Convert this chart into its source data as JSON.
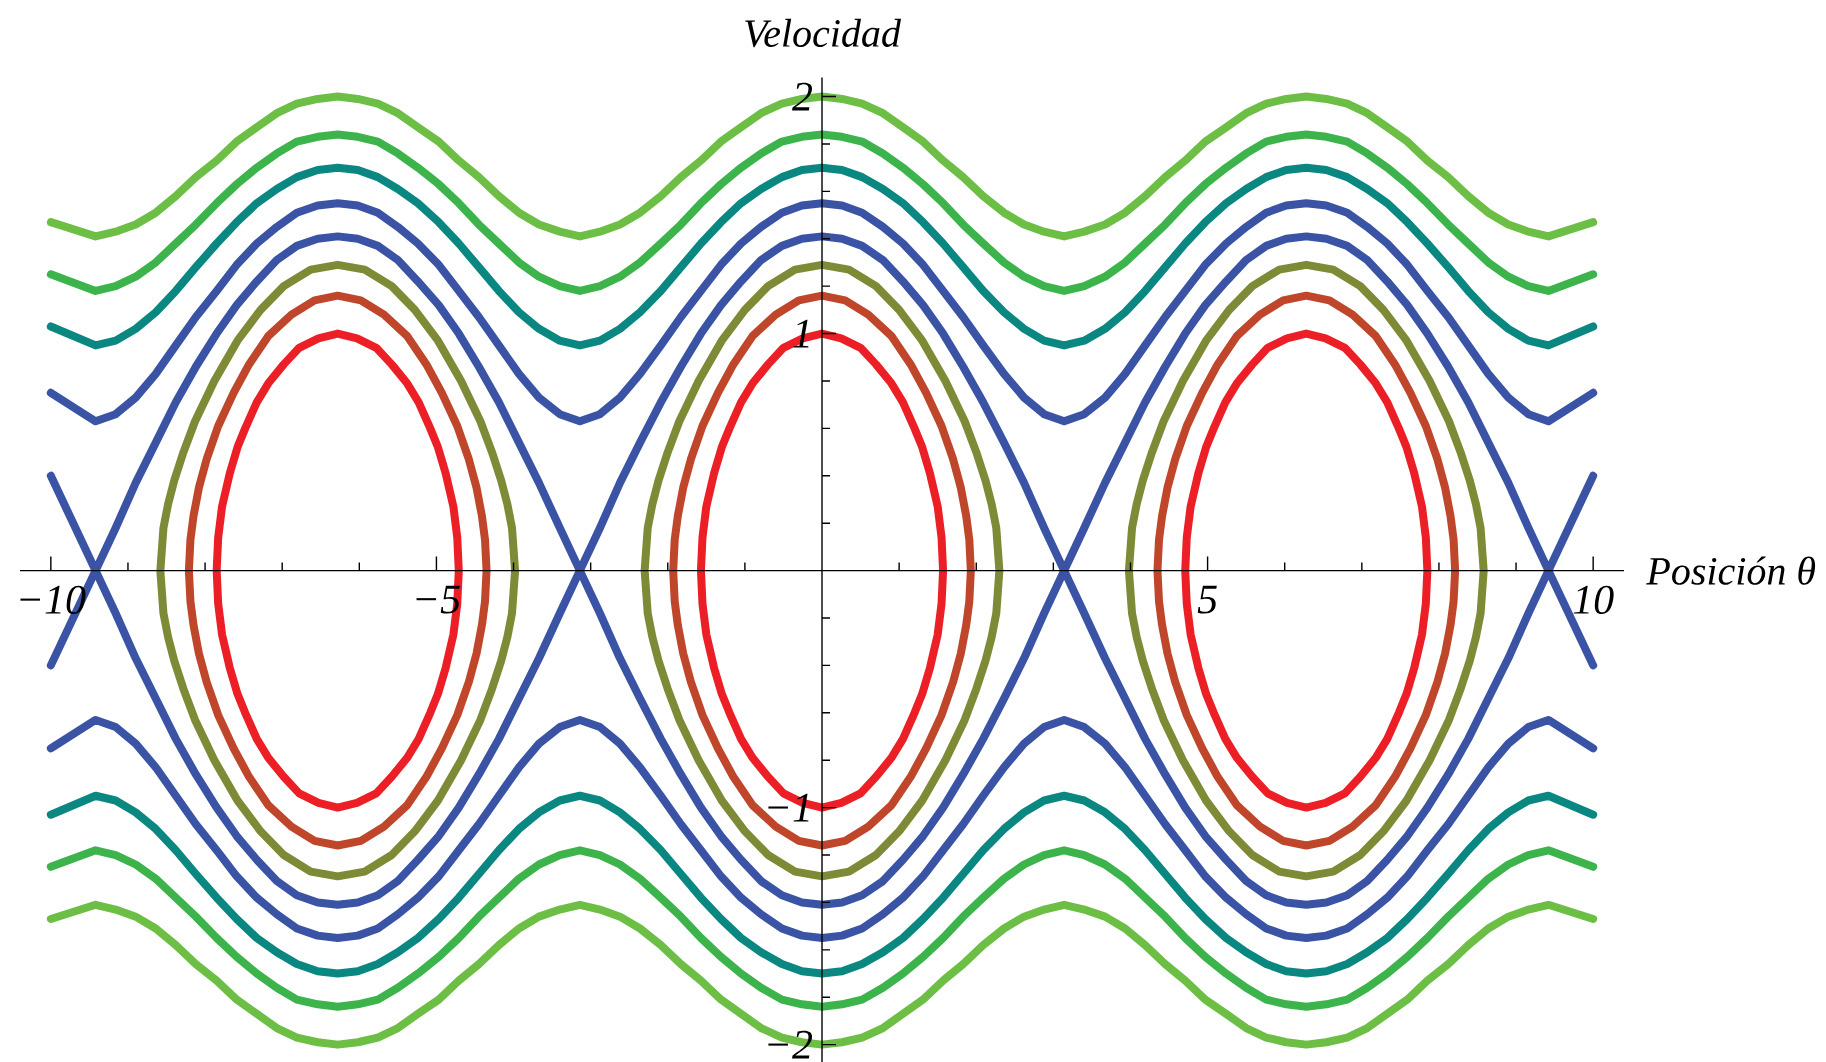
{
  "chart_data": {
    "type": "line",
    "xlabel": "Posición θ",
    "ylabel": "Velocidad",
    "marker": "none",
    "xlim": [
      -10.4,
      10.4
    ],
    "ylim": [
      -2.08,
      2.08
    ],
    "xticks": [
      {
        "value": -10,
        "label": "−10"
      },
      {
        "value": -9,
        "label": null
      },
      {
        "value": -8,
        "label": null
      },
      {
        "value": -7,
        "label": null
      },
      {
        "value": -6,
        "label": null
      },
      {
        "value": -5,
        "label": "−5"
      },
      {
        "value": -4,
        "label": null
      },
      {
        "value": -3,
        "label": null
      },
      {
        "value": -2,
        "label": null
      },
      {
        "value": -1,
        "label": null
      },
      {
        "value": 1,
        "label": null
      },
      {
        "value": 2,
        "label": null
      },
      {
        "value": 3,
        "label": null
      },
      {
        "value": 4,
        "label": null
      },
      5,
      {
        "value": 6,
        "label": null
      },
      {
        "value": 7,
        "label": null
      },
      {
        "value": 8,
        "label": null
      },
      {
        "value": 9,
        "label": null
      },
      10
    ],
    "yticks": [
      {
        "value": -2,
        "label": "−2"
      },
      {
        "value": -1.8,
        "label": null
      },
      {
        "value": -1.6,
        "label": null
      },
      {
        "value": -1.4,
        "label": null
      },
      {
        "value": -1.2,
        "label": null
      },
      {
        "value": -1,
        "label": "−1"
      },
      {
        "value": -0.8,
        "label": null
      },
      {
        "value": -0.6,
        "label": null
      },
      {
        "value": -0.4,
        "label": null
      },
      {
        "value": -0.2,
        "label": null
      },
      {
        "value": 0.2,
        "label": null
      },
      {
        "value": 0.4,
        "label": null
      },
      {
        "value": 0.6,
        "label": null
      },
      {
        "value": 0.8,
        "label": null
      },
      1,
      {
        "value": 1.2,
        "label": null
      },
      {
        "value": 1.4,
        "label": null
      },
      {
        "value": 1.6,
        "label": null
      },
      {
        "value": 1.8,
        "label": null
      },
      2
    ],
    "x": [
      -10,
      -9.42,
      -9.16,
      -8.9,
      -8.64,
      -8.38,
      -8.12,
      -7.85,
      -7.59,
      -7.33,
      -7.07,
      -6.81,
      -6.54,
      -6.28,
      -6.02,
      -5.76,
      -5.5,
      -5.24,
      -4.97,
      -4.71,
      -4.45,
      -4.19,
      -3.93,
      -3.67,
      -3.4,
      -3.14,
      -2.88,
      -2.62,
      -2.36,
      -2.09,
      -1.83,
      -1.57,
      -1.31,
      -1.05,
      -0.79,
      -0.52,
      -0.26,
      0,
      0.26,
      0.52,
      0.79,
      1.05,
      1.31,
      1.57,
      1.83,
      2.09,
      2.36,
      2.62,
      2.88,
      3.14,
      3.4,
      3.67,
      3.93,
      4.19,
      4.45,
      4.71,
      4.97,
      5.24,
      5.5,
      5.76,
      6.02,
      6.28,
      6.54,
      6.81,
      7.07,
      7.33,
      7.59,
      7.85,
      8.12,
      8.38,
      8.64,
      8.9,
      9.16,
      9.42,
      10
    ],
    "series": [
      {
        "color": "#6cbe45",
        "values": [
          1.47,
          1.41,
          1.43,
          1.46,
          1.51,
          1.58,
          1.66,
          1.73,
          1.81,
          1.87,
          1.93,
          1.97,
          1.99,
          2,
          1.99,
          1.97,
          1.93,
          1.87,
          1.81,
          1.73,
          1.66,
          1.58,
          1.51,
          1.46,
          1.43,
          1.41,
          1.43,
          1.46,
          1.51,
          1.58,
          1.66,
          1.73,
          1.81,
          1.87,
          1.93,
          1.97,
          1.99,
          2,
          1.99,
          1.97,
          1.93,
          1.87,
          1.81,
          1.73,
          1.66,
          1.58,
          1.51,
          1.46,
          1.43,
          1.41,
          1.43,
          1.46,
          1.51,
          1.58,
          1.66,
          1.73,
          1.81,
          1.87,
          1.93,
          1.97,
          1.99,
          2,
          1.99,
          1.97,
          1.93,
          1.87,
          1.81,
          1.73,
          1.66,
          1.58,
          1.51,
          1.46,
          1.43,
          1.41,
          1.47
        ]
      },
      {
        "color": "#6cbe45",
        "values": [
          -1.47,
          -1.41,
          -1.43,
          -1.46,
          -1.51,
          -1.58,
          -1.66,
          -1.73,
          -1.81,
          -1.87,
          -1.93,
          -1.97,
          -1.99,
          -2,
          -1.99,
          -1.97,
          -1.93,
          -1.87,
          -1.81,
          -1.73,
          -1.66,
          -1.58,
          -1.51,
          -1.46,
          -1.43,
          -1.41,
          -1.43,
          -1.46,
          -1.51,
          -1.58,
          -1.66,
          -1.73,
          -1.81,
          -1.87,
          -1.93,
          -1.97,
          -1.99,
          -2,
          -1.99,
          -1.97,
          -1.93,
          -1.87,
          -1.81,
          -1.73,
          -1.66,
          -1.58,
          -1.51,
          -1.46,
          -1.43,
          -1.41,
          -1.43,
          -1.46,
          -1.51,
          -1.58,
          -1.66,
          -1.73,
          -1.81,
          -1.87,
          -1.93,
          -1.97,
          -1.99,
          -2,
          -1.99,
          -1.97,
          -1.93,
          -1.87,
          -1.81,
          -1.73,
          -1.66,
          -1.58,
          -1.51,
          -1.46,
          -1.43,
          -1.41,
          -1.47
        ]
      },
      {
        "color": "#3cb44b",
        "values": [
          1.25,
          1.18,
          1.2,
          1.24,
          1.3,
          1.38,
          1.46,
          1.55,
          1.63,
          1.7,
          1.76,
          1.81,
          1.83,
          1.84,
          1.83,
          1.81,
          1.76,
          1.7,
          1.63,
          1.55,
          1.46,
          1.38,
          1.3,
          1.24,
          1.2,
          1.18,
          1.2,
          1.24,
          1.3,
          1.38,
          1.46,
          1.55,
          1.63,
          1.7,
          1.76,
          1.81,
          1.83,
          1.84,
          1.83,
          1.81,
          1.76,
          1.7,
          1.63,
          1.55,
          1.46,
          1.38,
          1.3,
          1.24,
          1.2,
          1.18,
          1.2,
          1.24,
          1.3,
          1.38,
          1.46,
          1.55,
          1.63,
          1.7,
          1.76,
          1.81,
          1.83,
          1.84,
          1.83,
          1.81,
          1.76,
          1.7,
          1.63,
          1.55,
          1.46,
          1.38,
          1.3,
          1.24,
          1.2,
          1.18,
          1.25
        ]
      },
      {
        "color": "#3cb44b",
        "values": [
          -1.25,
          -1.18,
          -1.2,
          -1.24,
          -1.3,
          -1.38,
          -1.46,
          -1.55,
          -1.63,
          -1.7,
          -1.76,
          -1.81,
          -1.83,
          -1.84,
          -1.83,
          -1.81,
          -1.76,
          -1.7,
          -1.63,
          -1.55,
          -1.46,
          -1.38,
          -1.3,
          -1.24,
          -1.2,
          -1.18,
          -1.2,
          -1.24,
          -1.3,
          -1.38,
          -1.46,
          -1.55,
          -1.63,
          -1.7,
          -1.76,
          -1.81,
          -1.83,
          -1.84,
          -1.83,
          -1.81,
          -1.76,
          -1.7,
          -1.63,
          -1.55,
          -1.46,
          -1.38,
          -1.3,
          -1.24,
          -1.2,
          -1.18,
          -1.2,
          -1.24,
          -1.3,
          -1.38,
          -1.46,
          -1.55,
          -1.63,
          -1.7,
          -1.76,
          -1.81,
          -1.83,
          -1.84,
          -1.83,
          -1.81,
          -1.76,
          -1.7,
          -1.63,
          -1.55,
          -1.46,
          -1.38,
          -1.3,
          -1.24,
          -1.2,
          -1.18,
          -1.25
        ]
      },
      {
        "color": "#0b8782",
        "values": [
          1.03,
          0.95,
          0.97,
          1.02,
          1.09,
          1.18,
          1.28,
          1.38,
          1.47,
          1.55,
          1.61,
          1.66,
          1.69,
          1.7,
          1.69,
          1.66,
          1.61,
          1.55,
          1.47,
          1.38,
          1.28,
          1.18,
          1.09,
          1.02,
          0.97,
          0.95,
          0.97,
          1.02,
          1.09,
          1.18,
          1.28,
          1.38,
          1.47,
          1.55,
          1.61,
          1.66,
          1.69,
          1.7,
          1.69,
          1.66,
          1.61,
          1.55,
          1.47,
          1.38,
          1.28,
          1.18,
          1.09,
          1.02,
          0.97,
          0.95,
          0.97,
          1.02,
          1.09,
          1.18,
          1.28,
          1.38,
          1.47,
          1.55,
          1.61,
          1.66,
          1.69,
          1.7,
          1.69,
          1.66,
          1.61,
          1.55,
          1.47,
          1.38,
          1.28,
          1.18,
          1.09,
          1.02,
          0.97,
          0.95,
          1.03
        ]
      },
      {
        "color": "#0b8782",
        "values": [
          -1.03,
          -0.95,
          -0.97,
          -1.02,
          -1.09,
          -1.18,
          -1.28,
          -1.38,
          -1.47,
          -1.55,
          -1.61,
          -1.66,
          -1.69,
          -1.7,
          -1.69,
          -1.66,
          -1.61,
          -1.55,
          -1.47,
          -1.38,
          -1.28,
          -1.18,
          -1.09,
          -1.02,
          -0.97,
          -0.95,
          -0.97,
          -1.02,
          -1.09,
          -1.18,
          -1.28,
          -1.38,
          -1.47,
          -1.55,
          -1.61,
          -1.66,
          -1.69,
          -1.7,
          -1.69,
          -1.66,
          -1.61,
          -1.55,
          -1.47,
          -1.38,
          -1.28,
          -1.18,
          -1.09,
          -1.02,
          -0.97,
          -0.95,
          -0.97,
          -1.02,
          -1.09,
          -1.18,
          -1.28,
          -1.38,
          -1.47,
          -1.55,
          -1.61,
          -1.66,
          -1.69,
          -1.7,
          -1.69,
          -1.66,
          -1.61,
          -1.55,
          -1.47,
          -1.38,
          -1.28,
          -1.18,
          -1.09,
          -1.02,
          -0.97,
          -0.95,
          -1.03
        ]
      },
      {
        "color": "#3a53a4",
        "values": [
          0.75,
          0.63,
          0.66,
          0.73,
          0.83,
          0.95,
          1.07,
          1.18,
          1.29,
          1.38,
          1.45,
          1.51,
          1.54,
          1.55,
          1.54,
          1.51,
          1.45,
          1.38,
          1.29,
          1.18,
          1.07,
          0.95,
          0.83,
          0.73,
          0.66,
          0.63,
          0.66,
          0.73,
          0.83,
          0.95,
          1.07,
          1.18,
          1.29,
          1.38,
          1.45,
          1.51,
          1.54,
          1.55,
          1.54,
          1.51,
          1.45,
          1.38,
          1.29,
          1.18,
          1.07,
          0.95,
          0.83,
          0.73,
          0.66,
          0.63,
          0.66,
          0.73,
          0.83,
          0.95,
          1.07,
          1.18,
          1.29,
          1.38,
          1.45,
          1.51,
          1.54,
          1.55,
          1.54,
          1.51,
          1.45,
          1.38,
          1.29,
          1.18,
          1.07,
          0.95,
          0.83,
          0.73,
          0.66,
          0.63,
          0.75
        ]
      },
      {
        "color": "#3a53a4",
        "values": [
          -0.75,
          -0.63,
          -0.66,
          -0.73,
          -0.83,
          -0.95,
          -1.07,
          -1.18,
          -1.29,
          -1.38,
          -1.45,
          -1.51,
          -1.54,
          -1.55,
          -1.54,
          -1.51,
          -1.45,
          -1.38,
          -1.29,
          -1.18,
          -1.07,
          -0.95,
          -0.83,
          -0.73,
          -0.66,
          -0.63,
          -0.66,
          -0.73,
          -0.83,
          -0.95,
          -1.07,
          -1.18,
          -1.29,
          -1.38,
          -1.45,
          -1.51,
          -1.54,
          -1.55,
          -1.54,
          -1.51,
          -1.45,
          -1.38,
          -1.29,
          -1.18,
          -1.07,
          -0.95,
          -0.83,
          -0.73,
          -0.66,
          -0.63,
          -0.66,
          -0.73,
          -0.83,
          -0.95,
          -1.07,
          -1.18,
          -1.29,
          -1.38,
          -1.45,
          -1.51,
          -1.54,
          -1.55,
          -1.54,
          -1.51,
          -1.45,
          -1.38,
          -1.29,
          -1.18,
          -1.07,
          -0.95,
          -0.83,
          -0.73,
          -0.66,
          -0.63,
          -0.75
        ]
      },
      {
        "color": "#3a53a4",
        "values": [
          0.4,
          0,
          0.18,
          0.37,
          0.54,
          0.71,
          0.86,
          1,
          1.12,
          1.22,
          1.31,
          1.37,
          1.4,
          1.41,
          1.4,
          1.37,
          1.31,
          1.22,
          1.12,
          1,
          0.86,
          0.71,
          0.54,
          0.37,
          0.18,
          0,
          0.18,
          0.37,
          0.54,
          0.71,
          0.86,
          1,
          1.12,
          1.22,
          1.31,
          1.37,
          1.4,
          1.41,
          1.4,
          1.37,
          1.31,
          1.22,
          1.12,
          1,
          0.86,
          0.71,
          0.54,
          0.37,
          0.18,
          0,
          0.18,
          0.37,
          0.54,
          0.71,
          0.86,
          1,
          1.12,
          1.22,
          1.31,
          1.37,
          1.4,
          1.41,
          1.4,
          1.37,
          1.31,
          1.22,
          1.12,
          1,
          0.86,
          0.71,
          0.54,
          0.37,
          0.18,
          0,
          0.4
        ]
      },
      {
        "color": "#3a53a4",
        "values": [
          -0.4,
          0,
          -0.18,
          -0.37,
          -0.54,
          -0.71,
          -0.86,
          -1,
          -1.12,
          -1.22,
          -1.31,
          -1.37,
          -1.4,
          -1.41,
          -1.4,
          -1.37,
          -1.31,
          -1.22,
          -1.12,
          -1,
          -0.86,
          -0.71,
          -0.54,
          -0.37,
          -0.18,
          0,
          -0.18,
          -0.37,
          -0.54,
          -0.71,
          -0.86,
          -1,
          -1.12,
          -1.22,
          -1.31,
          -1.37,
          -1.4,
          -1.41,
          -1.4,
          -1.37,
          -1.31,
          -1.22,
          -1.12,
          -1,
          -0.86,
          -0.71,
          -0.54,
          -0.37,
          -0.18,
          0,
          -0.18,
          -0.37,
          -0.54,
          -0.71,
          -0.86,
          -1,
          -1.12,
          -1.22,
          -1.31,
          -1.37,
          -1.4,
          -1.41,
          -1.4,
          -1.37,
          -1.31,
          -1.22,
          -1.12,
          -1,
          -0.86,
          -0.71,
          -0.54,
          -0.37,
          -0.18,
          0,
          -0.4
        ]
      },
      {
        "color": "#7f8a36",
        "x": [
          -8.58,
          -8.54,
          -8.48,
          -8.4,
          -8.28,
          -8.13,
          -7.88,
          -7.58,
          -7.28,
          -6.98,
          -6.63,
          -6.28,
          -5.93,
          -5.58,
          -5.28,
          -4.98,
          -4.68,
          -4.43,
          -4.28,
          -4.16,
          -4.08,
          -4.02,
          -3.98,
          null,
          -8.58,
          -8.54,
          -8.48,
          -8.4,
          -8.28,
          -8.13,
          -7.88,
          -7.58,
          -7.28,
          -6.98,
          -6.63,
          -6.28,
          -5.93,
          -5.58,
          -5.28,
          -4.98,
          -4.68,
          -4.43,
          -4.28,
          -4.16,
          -4.08,
          -4.02,
          -3.98,
          null,
          -2.3,
          -2.26,
          -2.2,
          -2.12,
          -2,
          -1.85,
          -1.6,
          -1.3,
          -1,
          -0.7,
          -0.35,
          0,
          0.35,
          0.7,
          1,
          1.3,
          1.6,
          1.85,
          2,
          2.12,
          2.2,
          2.26,
          2.3,
          null,
          -2.3,
          -2.26,
          -2.2,
          -2.12,
          -2,
          -1.85,
          -1.6,
          -1.3,
          -1,
          -0.7,
          -0.35,
          0,
          0.35,
          0.7,
          1,
          1.3,
          1.6,
          1.85,
          2,
          2.12,
          2.2,
          2.26,
          2.3,
          null,
          3.98,
          4.02,
          4.08,
          4.16,
          4.28,
          4.43,
          4.68,
          4.98,
          5.28,
          5.58,
          5.93,
          6.28,
          6.63,
          6.98,
          7.28,
          7.58,
          7.88,
          8.13,
          8.28,
          8.4,
          8.48,
          8.54,
          8.58,
          null,
          3.98,
          4.02,
          4.08,
          4.16,
          4.28,
          4.43,
          4.68,
          4.98,
          5.28,
          5.58,
          5.93,
          6.28,
          6.63,
          6.98,
          7.28,
          7.58,
          7.88,
          8.13,
          8.28,
          8.4,
          8.48,
          8.54,
          8.58
        ],
        "values": [
          0,
          0.18,
          0.28,
          0.38,
          0.5,
          0.63,
          0.8,
          0.97,
          1.1,
          1.2,
          1.27,
          1.29,
          1.27,
          1.2,
          1.1,
          0.97,
          0.8,
          0.63,
          0.5,
          0.38,
          0.28,
          0.18,
          0,
          null,
          0,
          -0.18,
          -0.28,
          -0.38,
          -0.5,
          -0.63,
          -0.8,
          -0.97,
          -1.1,
          -1.2,
          -1.27,
          -1.29,
          -1.27,
          -1.2,
          -1.1,
          -0.97,
          -0.8,
          -0.63,
          -0.5,
          -0.38,
          -0.28,
          -0.18,
          0,
          null,
          0,
          0.18,
          0.28,
          0.38,
          0.5,
          0.63,
          0.8,
          0.97,
          1.1,
          1.2,
          1.27,
          1.29,
          1.27,
          1.2,
          1.1,
          0.97,
          0.8,
          0.63,
          0.5,
          0.38,
          0.28,
          0.18,
          0,
          null,
          0,
          -0.18,
          -0.28,
          -0.38,
          -0.5,
          -0.63,
          -0.8,
          -0.97,
          -1.1,
          -1.2,
          -1.27,
          -1.29,
          -1.27,
          -1.2,
          -1.1,
          -0.97,
          -0.8,
          -0.63,
          -0.5,
          -0.38,
          -0.28,
          -0.18,
          0,
          null,
          0,
          0.18,
          0.28,
          0.38,
          0.5,
          0.63,
          0.8,
          0.97,
          1.1,
          1.2,
          1.27,
          1.29,
          1.27,
          1.2,
          1.1,
          0.97,
          0.8,
          0.63,
          0.5,
          0.38,
          0.28,
          0.18,
          0,
          null,
          0,
          -0.18,
          -0.28,
          -0.38,
          -0.5,
          -0.63,
          -0.8,
          -0.97,
          -1.1,
          -1.2,
          -1.27,
          -1.29,
          -1.27,
          -1.2,
          -1.1,
          -0.97,
          -0.8,
          -0.63,
          -0.5,
          -0.38,
          -0.28,
          -0.18,
          0
        ]
      },
      {
        "color": "#c0462b",
        "x": [
          -8.21,
          -8.19,
          -8.15,
          -8.08,
          -7.98,
          -7.83,
          -7.63,
          -7.43,
          -7.18,
          -6.88,
          -6.58,
          -6.28,
          -5.98,
          -5.68,
          -5.38,
          -5.13,
          -4.93,
          -4.73,
          -4.58,
          -4.48,
          -4.41,
          -4.37,
          -4.35,
          null,
          -8.21,
          -8.19,
          -8.15,
          -8.08,
          -7.98,
          -7.83,
          -7.63,
          -7.43,
          -7.18,
          -6.88,
          -6.58,
          -6.28,
          -5.98,
          -5.68,
          -5.38,
          -5.13,
          -4.93,
          -4.73,
          -4.58,
          -4.48,
          -4.41,
          -4.37,
          -4.35,
          null,
          -1.93,
          -1.91,
          -1.87,
          -1.8,
          -1.7,
          -1.55,
          -1.35,
          -1.15,
          -0.9,
          -0.6,
          -0.3,
          0,
          0.3,
          0.6,
          0.9,
          1.15,
          1.35,
          1.55,
          1.7,
          1.8,
          1.87,
          1.91,
          1.93,
          null,
          -1.93,
          -1.91,
          -1.87,
          -1.8,
          -1.7,
          -1.55,
          -1.35,
          -1.15,
          -0.9,
          -0.6,
          -0.3,
          0,
          0.3,
          0.6,
          0.9,
          1.15,
          1.35,
          1.55,
          1.7,
          1.8,
          1.87,
          1.91,
          1.93,
          null,
          4.35,
          4.37,
          4.41,
          4.48,
          4.58,
          4.73,
          4.93,
          5.13,
          5.38,
          5.68,
          5.98,
          6.28,
          6.58,
          6.88,
          7.18,
          7.43,
          7.63,
          7.83,
          7.98,
          8.08,
          8.15,
          8.19,
          8.21,
          null,
          4.35,
          4.37,
          4.41,
          4.48,
          4.58,
          4.73,
          4.93,
          5.13,
          5.38,
          5.68,
          5.98,
          6.28,
          6.58,
          6.88,
          7.18,
          7.43,
          7.63,
          7.83,
          7.98,
          8.08,
          8.15,
          8.19,
          8.21
        ],
        "values": [
          0,
          0.13,
          0.23,
          0.35,
          0.47,
          0.61,
          0.75,
          0.87,
          0.99,
          1.08,
          1.14,
          1.16,
          1.14,
          1.08,
          0.99,
          0.87,
          0.75,
          0.61,
          0.47,
          0.35,
          0.23,
          0.13,
          0,
          null,
          0,
          -0.13,
          -0.23,
          -0.35,
          -0.47,
          -0.61,
          -0.75,
          -0.87,
          -0.99,
          -1.08,
          -1.14,
          -1.16,
          -1.14,
          -1.08,
          -0.99,
          -0.87,
          -0.75,
          -0.61,
          -0.47,
          -0.35,
          -0.23,
          -0.13,
          0,
          null,
          0,
          0.13,
          0.23,
          0.35,
          0.47,
          0.61,
          0.75,
          0.87,
          0.99,
          1.08,
          1.14,
          1.16,
          1.14,
          1.08,
          0.99,
          0.87,
          0.75,
          0.61,
          0.47,
          0.35,
          0.23,
          0.13,
          0,
          null,
          0,
          -0.13,
          -0.23,
          -0.35,
          -0.47,
          -0.61,
          -0.75,
          -0.87,
          -0.99,
          -1.08,
          -1.14,
          -1.16,
          -1.14,
          -1.08,
          -0.99,
          -0.87,
          -0.75,
          -0.61,
          -0.47,
          -0.35,
          -0.23,
          -0.13,
          0,
          null,
          0,
          0.13,
          0.23,
          0.35,
          0.47,
          0.61,
          0.75,
          0.87,
          0.99,
          1.08,
          1.14,
          1.16,
          1.14,
          1.08,
          0.99,
          0.87,
          0.75,
          0.61,
          0.47,
          0.35,
          0.23,
          0.13,
          0,
          null,
          0,
          -0.13,
          -0.23,
          -0.35,
          -0.47,
          -0.61,
          -0.75,
          -0.87,
          -0.99,
          -1.08,
          -1.14,
          -1.16,
          -1.14,
          -1.08,
          -0.99,
          -0.87,
          -0.75,
          -0.61,
          -0.47,
          -0.35,
          -0.23,
          -0.13,
          0
        ]
      },
      {
        "color": "#ec1f26",
        "x": [
          -7.85,
          -7.83,
          -7.78,
          -7.68,
          -7.58,
          -7.48,
          -7.33,
          -7.18,
          -6.98,
          -6.78,
          -6.53,
          -6.28,
          -6.03,
          -5.78,
          -5.58,
          -5.38,
          -5.23,
          -5.08,
          -4.98,
          -4.88,
          -4.78,
          -4.73,
          -4.71,
          null,
          -7.85,
          -7.83,
          -7.78,
          -7.68,
          -7.58,
          -7.48,
          -7.33,
          -7.18,
          -6.98,
          -6.78,
          -6.53,
          -6.28,
          -6.03,
          -5.78,
          -5.58,
          -5.38,
          -5.23,
          -5.08,
          -4.98,
          -4.88,
          -4.78,
          -4.73,
          -4.71,
          null,
          -1.57,
          -1.55,
          -1.5,
          -1.4,
          -1.3,
          -1.2,
          -1.05,
          -0.9,
          -0.7,
          -0.5,
          -0.25,
          0,
          0.25,
          0.5,
          0.7,
          0.9,
          1.05,
          1.2,
          1.3,
          1.4,
          1.5,
          1.55,
          1.57,
          null,
          -1.57,
          -1.55,
          -1.5,
          -1.4,
          -1.3,
          -1.2,
          -1.05,
          -0.9,
          -0.7,
          -0.5,
          -0.25,
          0,
          0.25,
          0.5,
          0.7,
          0.9,
          1.05,
          1.2,
          1.3,
          1.4,
          1.5,
          1.55,
          1.57,
          null,
          4.71,
          4.73,
          4.78,
          4.88,
          4.98,
          5.08,
          5.23,
          5.38,
          5.58,
          5.78,
          6.03,
          6.28,
          6.53,
          6.78,
          6.98,
          7.18,
          7.33,
          7.48,
          7.58,
          7.68,
          7.78,
          7.83,
          7.85,
          null,
          4.71,
          4.73,
          4.78,
          4.88,
          4.98,
          5.08,
          5.23,
          5.38,
          5.58,
          5.78,
          6.03,
          6.28,
          6.53,
          6.78,
          6.98,
          7.18,
          7.33,
          7.48,
          7.58,
          7.68,
          7.78,
          7.83,
          7.85
        ],
        "values": [
          0,
          0.14,
          0.27,
          0.41,
          0.52,
          0.6,
          0.71,
          0.79,
          0.87,
          0.94,
          0.98,
          1,
          0.98,
          0.94,
          0.87,
          0.79,
          0.71,
          0.6,
          0.52,
          0.41,
          0.27,
          0.14,
          0,
          null,
          0,
          -0.14,
          -0.27,
          -0.41,
          -0.52,
          -0.6,
          -0.71,
          -0.79,
          -0.87,
          -0.94,
          -0.98,
          -1,
          -0.98,
          -0.94,
          -0.87,
          -0.79,
          -0.71,
          -0.6,
          -0.52,
          -0.41,
          -0.27,
          -0.14,
          0,
          null,
          0,
          0.14,
          0.27,
          0.41,
          0.52,
          0.6,
          0.71,
          0.79,
          0.87,
          0.94,
          0.98,
          1,
          0.98,
          0.94,
          0.87,
          0.79,
          0.71,
          0.6,
          0.52,
          0.41,
          0.27,
          0.14,
          0,
          null,
          0,
          -0.14,
          -0.27,
          -0.41,
          -0.52,
          -0.6,
          -0.71,
          -0.79,
          -0.87,
          -0.94,
          -0.98,
          -1,
          -0.98,
          -0.94,
          -0.87,
          -0.79,
          -0.71,
          -0.6,
          -0.52,
          -0.41,
          -0.27,
          -0.14,
          0,
          null,
          0,
          0.14,
          0.27,
          0.41,
          0.52,
          0.6,
          0.71,
          0.79,
          0.87,
          0.94,
          0.98,
          1,
          0.98,
          0.94,
          0.87,
          0.79,
          0.71,
          0.6,
          0.52,
          0.41,
          0.27,
          0.14,
          0,
          null,
          0,
          -0.14,
          -0.27,
          -0.41,
          -0.52,
          -0.6,
          -0.71,
          -0.79,
          -0.87,
          -0.94,
          -0.98,
          -1,
          -0.98,
          -0.94,
          -0.87,
          -0.79,
          -0.71,
          -0.6,
          -0.52,
          -0.41,
          -0.27,
          -0.14,
          0
        ]
      }
    ]
  }
}
